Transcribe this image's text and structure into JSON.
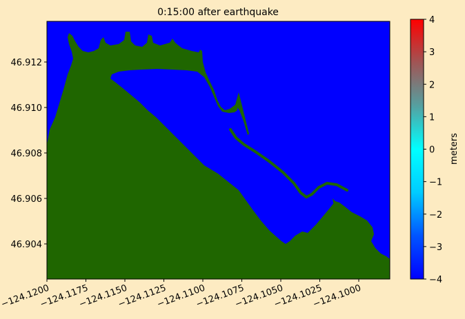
{
  "figure": {
    "background": "#fdebc2",
    "title": "0:15:00 after earthquake"
  },
  "chart_data": {
    "type": "heatmap",
    "title": "0:15:00 after earthquake",
    "xlabel": "",
    "ylabel": "",
    "xlim": [
      -124.12,
      -124.0
    ],
    "ylim": [
      46.9025,
      46.9137
    ],
    "x_ticks": [
      -124.12,
      -124.1175,
      -124.115,
      -124.1125,
      -124.11,
      -124.1075,
      -124.105,
      -124.1025,
      -124.1
    ],
    "x_tick_labels": [
      "−124.1200",
      "−124.1175",
      "−124.1150",
      "−124.1125",
      "−124.1100",
      "−124.1075",
      "−124.1050",
      "−124.1025",
      "−124.1000"
    ],
    "y_ticks": [
      46.904,
      46.906,
      46.908,
      46.91,
      46.912
    ],
    "y_tick_labels": [
      "46.904",
      "46.906",
      "46.908",
      "46.910",
      "46.912"
    ],
    "water_color": "#0000ff",
    "land_color": "#1f6600",
    "colorbar": {
      "label": "meters",
      "min": -4,
      "max": 4,
      "ticks": [
        4,
        3,
        2,
        1,
        0,
        -1,
        -2,
        -3,
        -4
      ],
      "tick_labels": [
        "4",
        "3",
        "2",
        "1",
        "0",
        "−1",
        "−2",
        "−3",
        "−4"
      ],
      "colors": [
        "#0000ff",
        "#0055ff",
        "#00ccff",
        "#00ffff",
        "#55a0a0",
        "#a05555",
        "#ff0000"
      ]
    }
  }
}
